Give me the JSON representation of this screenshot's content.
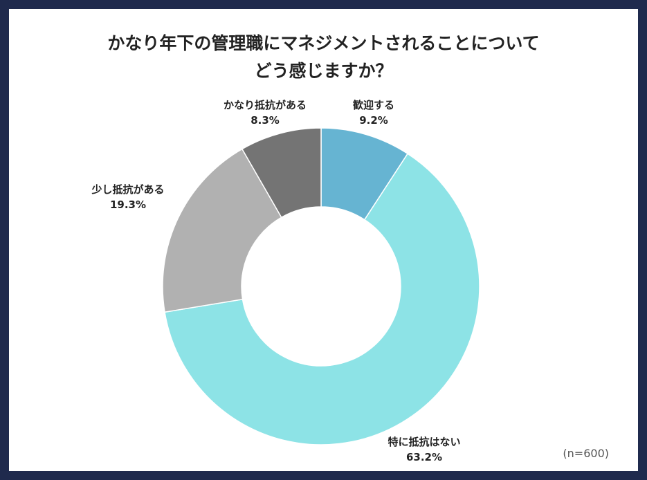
{
  "chart_data": {
    "type": "pie",
    "style": "donut",
    "title_lines": [
      "かなり年下の管理職にマネジメントされることについて",
      "どう感じますか？"
    ],
    "slices": [
      {
        "name": "歓迎する",
        "value": 9.2,
        "label": "9.2%",
        "color": "#66b4d2"
      },
      {
        "name": "特に抵抗はない",
        "value": 63.2,
        "label": "63.2%",
        "color": "#8de3e6"
      },
      {
        "name": "少し抵抗がある",
        "value": 19.3,
        "label": "19.3%",
        "color": "#b1b1b1"
      },
      {
        "name": "かなり抵抗がある",
        "value": 8.3,
        "label": "8.3%",
        "color": "#747474"
      }
    ],
    "sample_note": "(n=600)"
  }
}
